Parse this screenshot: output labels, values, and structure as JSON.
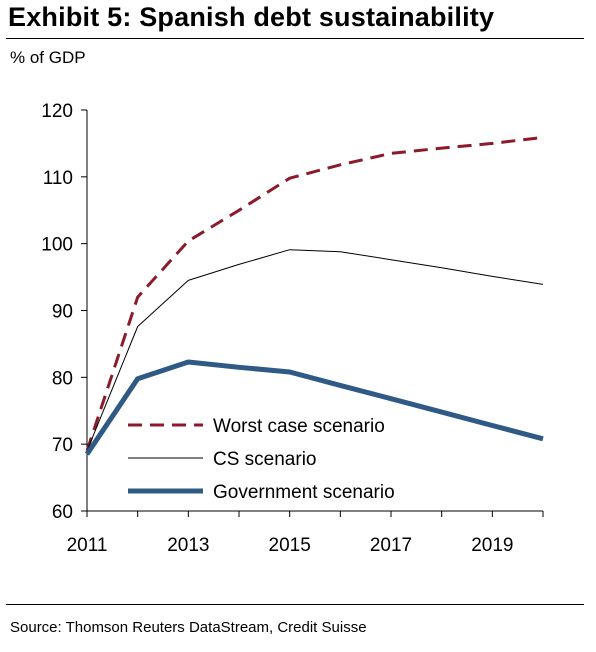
{
  "title": "Exhibit 5: Spanish debt sustainability",
  "unit_label": "% of GDP",
  "source": "Source: Thomson Reuters DataStream, Credit Suisse",
  "chart_data": {
    "type": "line",
    "title": "Exhibit 5: Spanish debt sustainability",
    "ylabel": "% of GDP",
    "xlabel": "",
    "x": [
      2011,
      2012,
      2013,
      2014,
      2015,
      2016,
      2017,
      2018,
      2019,
      2020
    ],
    "xlim": [
      2011,
      2020
    ],
    "ylim": [
      60,
      120
    ],
    "x_ticks": [
      "2011",
      "2013",
      "2015",
      "2017",
      "2019"
    ],
    "y_ticks": [
      "60",
      "70",
      "80",
      "90",
      "100",
      "110",
      "120"
    ],
    "grid": false,
    "legend_position": "bottom-center",
    "series": [
      {
        "name": "Worst case scenario",
        "color": "#8B1A2B",
        "style": "dashed",
        "values": [
          69.0,
          92.0,
          100.4,
          105.0,
          109.8,
          111.8,
          113.5,
          114.3,
          115.0,
          115.9
        ]
      },
      {
        "name": "CS scenario",
        "color": "#000000",
        "style": "thin",
        "values": [
          69.0,
          87.6,
          94.5,
          96.9,
          99.1,
          98.8,
          97.6,
          96.4,
          95.1,
          93.9
        ]
      },
      {
        "name": "Government scenario",
        "color": "#2F5A86",
        "style": "thick",
        "values": [
          68.5,
          79.8,
          82.3,
          81.5,
          80.8,
          78.8,
          76.8,
          74.8,
          72.8,
          70.8
        ]
      }
    ]
  }
}
